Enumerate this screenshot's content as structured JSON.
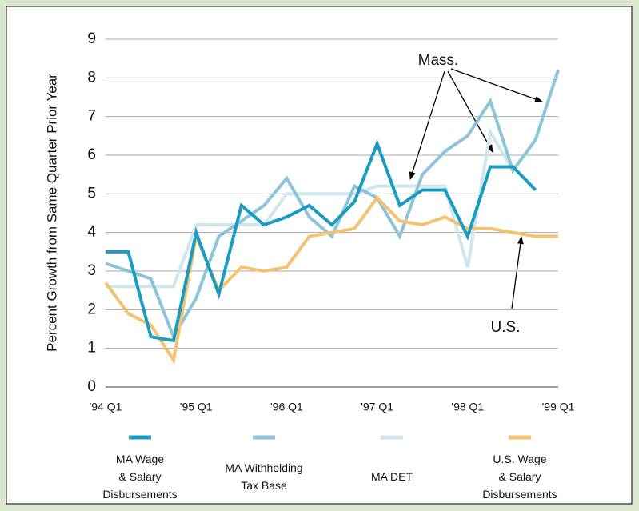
{
  "chart_data": {
    "type": "line",
    "y_label": "Percent Growth from Same Quarter Prior Year",
    "categories": [
      "'94 Q1",
      null,
      null,
      null,
      "'95 Q1",
      null,
      null,
      null,
      "'96 Q1",
      null,
      null,
      null,
      "'97 Q1",
      null,
      null,
      null,
      "'98 Q1",
      null,
      null,
      null,
      "'99 Q1"
    ],
    "series": [
      {
        "name": "MA Wage\n& Salary\nDisbursements",
        "color": "#1b9bc2",
        "values": [
          3.5,
          3.5,
          1.3,
          1.2,
          4.0,
          2.4,
          4.7,
          4.2,
          4.4,
          4.7,
          4.2,
          4.8,
          6.3,
          4.7,
          5.1,
          5.1,
          3.9,
          5.7,
          5.7,
          5.1,
          null
        ]
      },
      {
        "name": "MA Withholding\nTax Base",
        "color": "#8ec4da",
        "values": [
          3.2,
          3.0,
          2.8,
          1.3,
          2.3,
          3.9,
          4.3,
          4.7,
          5.4,
          4.4,
          3.9,
          5.2,
          4.9,
          3.9,
          5.5,
          6.1,
          6.5,
          7.4,
          5.6,
          6.4,
          8.2
        ]
      },
      {
        "name": "MA DET",
        "color": "#cfe6ee",
        "values": [
          2.6,
          2.6,
          2.6,
          2.6,
          4.2,
          4.2,
          4.2,
          4.2,
          5.0,
          5.0,
          5.0,
          5.0,
          5.2,
          5.2,
          5.2,
          5.2,
          3.1,
          6.6,
          5.6,
          null,
          null
        ]
      },
      {
        "name": "U.S. Wage\n& Salary\nDisbursements",
        "color": "#f5c172",
        "values": [
          2.7,
          1.9,
          1.6,
          0.7,
          3.9,
          2.5,
          3.1,
          3.0,
          3.1,
          3.9,
          4.0,
          4.1,
          4.9,
          4.3,
          4.2,
          4.4,
          4.1,
          4.1,
          4.0,
          3.9,
          3.9
        ]
      }
    ],
    "ylim": [
      0,
      9
    ],
    "yticks": [
      0,
      1,
      2,
      3,
      4,
      5,
      6,
      7,
      8,
      9
    ],
    "grid": true,
    "annotations": [
      "Mass.",
      "U.S."
    ]
  }
}
